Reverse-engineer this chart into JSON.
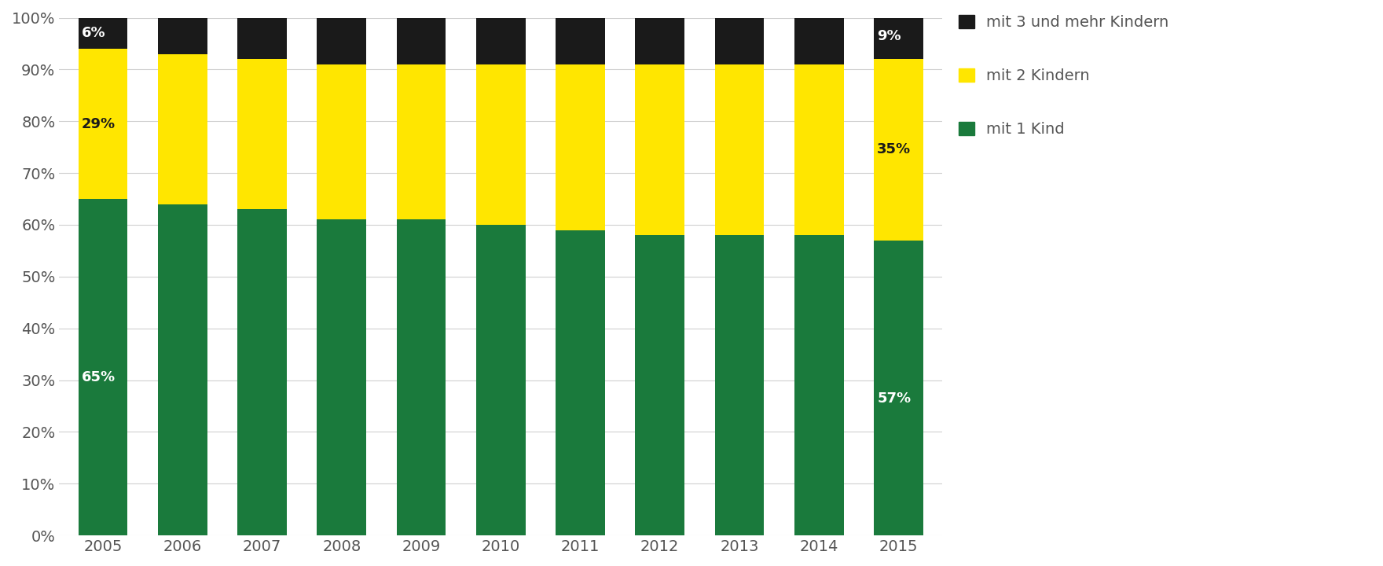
{
  "years": [
    2005,
    2006,
    2007,
    2008,
    2009,
    2010,
    2011,
    2012,
    2013,
    2014,
    2015
  ],
  "green": [
    65,
    64,
    63,
    61,
    61,
    60,
    59,
    58,
    58,
    58,
    57
  ],
  "yellow": [
    29,
    29,
    29,
    30,
    30,
    31,
    32,
    33,
    33,
    33,
    35
  ],
  "black": [
    6,
    7,
    8,
    9,
    9,
    9,
    9,
    9,
    9,
    9,
    9
  ],
  "green_color": "#1a7a3c",
  "yellow_color": "#ffe600",
  "black_color": "#1a1a1a",
  "legend_labels": [
    "mit 3 und mehr Kindern",
    "mit 2 Kindern",
    "mit 1 Kind"
  ],
  "annotate_first": {
    "green_label": "65%",
    "yellow_label": "29%",
    "black_label": "6%"
  },
  "annotate_last": {
    "green_label": "57%",
    "yellow_label": "35%",
    "black_label": "9%"
  },
  "ytick_labels": [
    "0%",
    "10%",
    "20%",
    "30%",
    "40%",
    "50%",
    "60%",
    "70%",
    "80%",
    "90%",
    "100%"
  ],
  "ylim": [
    0,
    100
  ],
  "background_color": "#ffffff",
  "bar_width": 0.62,
  "grid_color": "#d0d0d0",
  "text_color_green": "#ffffff",
  "text_color_yellow": "#1a1a1a",
  "text_color_black": "#ffffff",
  "legend_text_color": "#555555",
  "tick_label_color": "#555555"
}
